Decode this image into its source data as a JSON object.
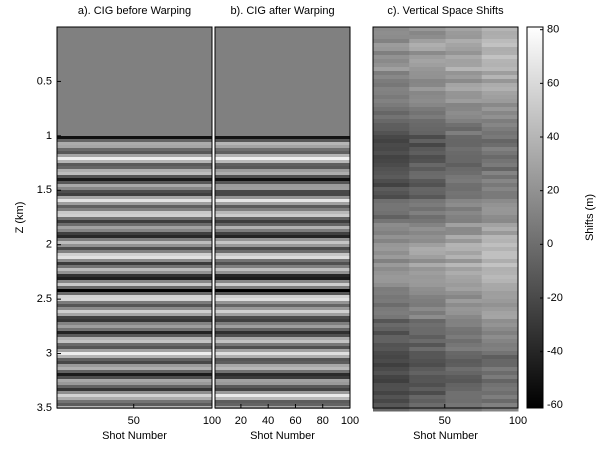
{
  "chart_data": [
    {
      "type": "image",
      "title": "a). CIG before Warping",
      "x_label": "Shot Number",
      "y_label": "Z (km)",
      "xlim": [
        1,
        100
      ],
      "xticks": [
        50,
        100
      ],
      "ylim": [
        0,
        3.5
      ],
      "yticks": [
        0.5,
        1,
        1.5,
        2,
        2.5,
        3,
        3.5
      ],
      "colormap": "gray"
    },
    {
      "type": "image",
      "title": "b). CIG after Warping",
      "x_label": "Shot Number",
      "xlim": [
        1,
        100
      ],
      "xticks": [
        20,
        40,
        60,
        80,
        100
      ],
      "ylim": [
        0,
        3.5
      ],
      "colormap": "gray"
    },
    {
      "type": "image",
      "title": "c). Vertical Space Shifts",
      "x_label": "Shot Number",
      "xlim": [
        1,
        100
      ],
      "xticks": [
        50,
        100
      ],
      "ylim": [
        0,
        3.5
      ],
      "colormap": "gray"
    },
    {
      "type": "colorbar",
      "label": "Shifts (m)",
      "clim": [
        -61,
        81
      ],
      "ticks": [
        -60,
        -40,
        -20,
        0,
        20,
        40,
        60,
        80
      ],
      "colormap": "gray"
    }
  ]
}
